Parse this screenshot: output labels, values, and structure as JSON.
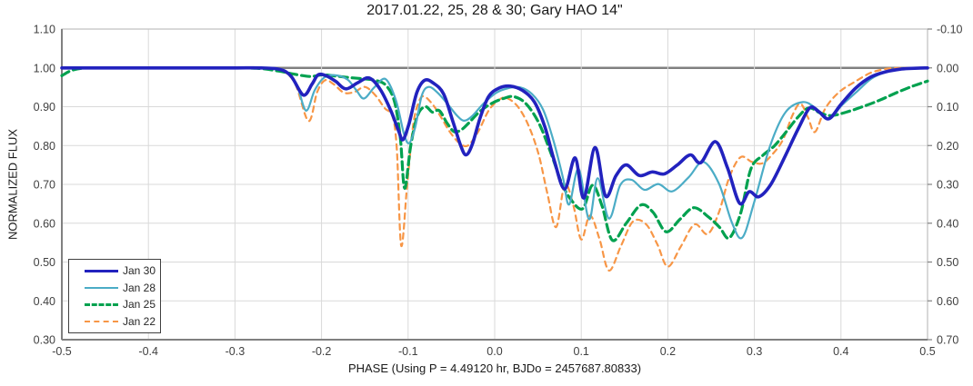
{
  "chart_data": {
    "type": "line",
    "title": "2017.01.22, 25, 28 & 30; Gary HAO 14\"",
    "xlabel": "PHASE (Using P = 4.49120 hr, BJDo = 2457687.80833)",
    "ylabel": "NORMALIZED FLUX",
    "xlim": [
      -0.5,
      0.5
    ],
    "ylim_left": [
      0.3,
      1.1
    ],
    "ylim_right": [
      0.7,
      -0.1
    ],
    "x_ticks": [
      "-0.5",
      "-0.4",
      "-0.3",
      "-0.2",
      "-0.1",
      "0.0",
      "0.1",
      "0.2",
      "0.3",
      "0.4",
      "0.5"
    ],
    "y_ticks_left": [
      "1.10",
      "1.00",
      "0.90",
      "0.80",
      "0.70",
      "0.60",
      "0.50",
      "0.40",
      "0.30"
    ],
    "y_ticks_right": [
      "-0.10",
      "0.00",
      "0.10",
      "0.20",
      "0.30",
      "0.40",
      "0.50",
      "0.60",
      "0.70"
    ],
    "grid": true,
    "legend_position": "inside-bottom-left",
    "reference_line_flux": 1.0,
    "colors": {
      "grid": "#D9D9D9",
      "border": "#BFBFBF",
      "axis": "#808080",
      "tick_text": "#404040",
      "title_text": "#1a1a1a"
    },
    "series": [
      {
        "name": "Jan 30",
        "color": "#2222BE",
        "style": "solid",
        "width": 3.6,
        "points": [
          [
            -0.5,
            1.0
          ],
          [
            -0.45,
            1.0
          ],
          [
            -0.4,
            1.0
          ],
          [
            -0.35,
            1.0
          ],
          [
            -0.3,
            1.0
          ],
          [
            -0.27,
            1.0
          ],
          [
            -0.248,
            0.996
          ],
          [
            -0.235,
            0.978
          ],
          [
            -0.221,
            0.93
          ],
          [
            -0.211,
            0.958
          ],
          [
            -0.204,
            0.982
          ],
          [
            -0.195,
            0.98
          ],
          [
            -0.184,
            0.966
          ],
          [
            -0.172,
            0.946
          ],
          [
            -0.158,
            0.962
          ],
          [
            -0.145,
            0.974
          ],
          [
            -0.132,
            0.944
          ],
          [
            -0.12,
            0.89
          ],
          [
            -0.111,
            0.838
          ],
          [
            -0.106,
            0.815
          ],
          [
            -0.099,
            0.856
          ],
          [
            -0.09,
            0.936
          ],
          [
            -0.081,
            0.968
          ],
          [
            -0.071,
            0.961
          ],
          [
            -0.059,
            0.933
          ],
          [
            -0.048,
            0.86
          ],
          [
            -0.039,
            0.798
          ],
          [
            -0.033,
            0.776
          ],
          [
            -0.026,
            0.802
          ],
          [
            -0.017,
            0.87
          ],
          [
            -0.007,
            0.926
          ],
          [
            0.005,
            0.948
          ],
          [
            0.018,
            0.953
          ],
          [
            0.032,
            0.942
          ],
          [
            0.046,
            0.912
          ],
          [
            0.058,
            0.848
          ],
          [
            0.069,
            0.76
          ],
          [
            0.081,
            0.688
          ],
          [
            0.093,
            0.768
          ],
          [
            0.103,
            0.665
          ],
          [
            0.116,
            0.795
          ],
          [
            0.128,
            0.67
          ],
          [
            0.14,
            0.722
          ],
          [
            0.152,
            0.75
          ],
          [
            0.167,
            0.723
          ],
          [
            0.182,
            0.732
          ],
          [
            0.196,
            0.727
          ],
          [
            0.211,
            0.75
          ],
          [
            0.226,
            0.776
          ],
          [
            0.238,
            0.756
          ],
          [
            0.255,
            0.81
          ],
          [
            0.269,
            0.742
          ],
          [
            0.283,
            0.651
          ],
          [
            0.294,
            0.681
          ],
          [
            0.305,
            0.668
          ],
          [
            0.319,
            0.7
          ],
          [
            0.336,
            0.775
          ],
          [
            0.351,
            0.845
          ],
          [
            0.364,
            0.897
          ],
          [
            0.374,
            0.888
          ],
          [
            0.386,
            0.869
          ],
          [
            0.4,
            0.906
          ],
          [
            0.417,
            0.948
          ],
          [
            0.434,
            0.976
          ],
          [
            0.452,
            0.99
          ],
          [
            0.47,
            0.997
          ],
          [
            0.485,
            0.999
          ],
          [
            0.5,
            1.0
          ]
        ]
      },
      {
        "name": "Jan 28",
        "color": "#4BACC6",
        "style": "solid",
        "width": 2.2,
        "points": [
          [
            -0.5,
            1.0
          ],
          [
            -0.45,
            1.0
          ],
          [
            -0.4,
            1.0
          ],
          [
            -0.35,
            1.0
          ],
          [
            -0.3,
            1.0
          ],
          [
            -0.265,
            1.0
          ],
          [
            -0.243,
            0.992
          ],
          [
            -0.229,
            0.958
          ],
          [
            -0.218,
            0.89
          ],
          [
            -0.208,
            0.942
          ],
          [
            -0.197,
            0.975
          ],
          [
            -0.184,
            0.981
          ],
          [
            -0.17,
            0.97
          ],
          [
            -0.16,
            0.943
          ],
          [
            -0.151,
            0.921
          ],
          [
            -0.139,
            0.95
          ],
          [
            -0.126,
            0.971
          ],
          [
            -0.114,
            0.916
          ],
          [
            -0.105,
            0.832
          ],
          [
            -0.099,
            0.806
          ],
          [
            -0.092,
            0.845
          ],
          [
            -0.084,
            0.93
          ],
          [
            -0.076,
            0.951
          ],
          [
            -0.066,
            0.936
          ],
          [
            -0.054,
            0.906
          ],
          [
            -0.043,
            0.876
          ],
          [
            -0.035,
            0.864
          ],
          [
            -0.026,
            0.876
          ],
          [
            -0.013,
            0.908
          ],
          [
            0.002,
            0.936
          ],
          [
            0.016,
            0.948
          ],
          [
            0.029,
            0.95
          ],
          [
            0.043,
            0.933
          ],
          [
            0.056,
            0.892
          ],
          [
            0.068,
            0.812
          ],
          [
            0.079,
            0.716
          ],
          [
            0.086,
            0.648
          ],
          [
            0.097,
            0.74
          ],
          [
            0.109,
            0.61
          ],
          [
            0.119,
            0.716
          ],
          [
            0.132,
            0.612
          ],
          [
            0.145,
            0.698
          ],
          [
            0.158,
            0.712
          ],
          [
            0.173,
            0.686
          ],
          [
            0.189,
            0.701
          ],
          [
            0.205,
            0.682
          ],
          [
            0.224,
            0.718
          ],
          [
            0.241,
            0.758
          ],
          [
            0.259,
            0.702
          ],
          [
            0.274,
            0.602
          ],
          [
            0.286,
            0.563
          ],
          [
            0.3,
            0.656
          ],
          [
            0.318,
            0.798
          ],
          [
            0.336,
            0.886
          ],
          [
            0.356,
            0.912
          ],
          [
            0.371,
            0.896
          ],
          [
            0.386,
            0.868
          ],
          [
            0.401,
            0.904
          ],
          [
            0.417,
            0.936
          ],
          [
            0.435,
            0.972
          ],
          [
            0.453,
            0.99
          ],
          [
            0.473,
            0.999
          ],
          [
            0.5,
            1.0
          ]
        ]
      },
      {
        "name": "Jan 25",
        "color": "#00A14F",
        "style": "dashed",
        "width": 3.2,
        "points": [
          [
            -0.5,
            0.98
          ],
          [
            -0.488,
            0.994
          ],
          [
            -0.47,
            1.0
          ],
          [
            -0.42,
            1.0
          ],
          [
            -0.37,
            1.0
          ],
          [
            -0.32,
            1.0
          ],
          [
            -0.275,
            0.999
          ],
          [
            -0.25,
            0.992
          ],
          [
            -0.232,
            0.984
          ],
          [
            -0.213,
            0.978
          ],
          [
            -0.199,
            0.982
          ],
          [
            -0.184,
            0.979
          ],
          [
            -0.168,
            0.975
          ],
          [
            -0.152,
            0.972
          ],
          [
            -0.138,
            0.968
          ],
          [
            -0.126,
            0.956
          ],
          [
            -0.116,
            0.915
          ],
          [
            -0.109,
            0.82
          ],
          [
            -0.104,
            0.69
          ],
          [
            -0.097,
            0.8
          ],
          [
            -0.089,
            0.878
          ],
          [
            -0.08,
            0.9
          ],
          [
            -0.072,
            0.886
          ],
          [
            -0.064,
            0.89
          ],
          [
            -0.055,
            0.858
          ],
          [
            -0.047,
            0.836
          ],
          [
            -0.039,
            0.84
          ],
          [
            -0.03,
            0.858
          ],
          [
            -0.018,
            0.886
          ],
          [
            -0.004,
            0.908
          ],
          [
            0.01,
            0.921
          ],
          [
            0.022,
            0.926
          ],
          [
            0.036,
            0.908
          ],
          [
            0.051,
            0.858
          ],
          [
            0.065,
            0.78
          ],
          [
            0.078,
            0.7
          ],
          [
            0.09,
            0.655
          ],
          [
            0.102,
            0.638
          ],
          [
            0.113,
            0.698
          ],
          [
            0.124,
            0.645
          ],
          [
            0.136,
            0.556
          ],
          [
            0.152,
            0.6
          ],
          [
            0.169,
            0.647
          ],
          [
            0.183,
            0.628
          ],
          [
            0.198,
            0.578
          ],
          [
            0.214,
            0.61
          ],
          [
            0.23,
            0.64
          ],
          [
            0.247,
            0.616
          ],
          [
            0.26,
            0.589
          ],
          [
            0.271,
            0.562
          ],
          [
            0.284,
            0.625
          ],
          [
            0.296,
            0.74
          ],
          [
            0.31,
            0.775
          ],
          [
            0.323,
            0.799
          ],
          [
            0.337,
            0.836
          ],
          [
            0.351,
            0.875
          ],
          [
            0.363,
            0.897
          ],
          [
            0.376,
            0.884
          ],
          [
            0.389,
            0.877
          ],
          [
            0.406,
            0.886
          ],
          [
            0.425,
            0.9
          ],
          [
            0.445,
            0.917
          ],
          [
            0.464,
            0.936
          ],
          [
            0.483,
            0.953
          ],
          [
            0.5,
            0.966
          ]
        ]
      },
      {
        "name": "Jan 22",
        "color": "#F79646",
        "style": "dashed",
        "width": 2.2,
        "points": [
          [
            -0.5,
            1.0
          ],
          [
            -0.45,
            1.0
          ],
          [
            -0.4,
            1.0
          ],
          [
            -0.35,
            1.0
          ],
          [
            -0.3,
            1.0
          ],
          [
            -0.262,
            0.999
          ],
          [
            -0.244,
            0.991
          ],
          [
            -0.23,
            0.957
          ],
          [
            -0.215,
            0.863
          ],
          [
            -0.205,
            0.938
          ],
          [
            -0.196,
            0.968
          ],
          [
            -0.186,
            0.958
          ],
          [
            -0.174,
            0.936
          ],
          [
            -0.162,
            0.938
          ],
          [
            -0.15,
            0.951
          ],
          [
            -0.138,
            0.93
          ],
          [
            -0.127,
            0.896
          ],
          [
            -0.118,
            0.875
          ],
          [
            -0.113,
            0.79
          ],
          [
            -0.108,
            0.542
          ],
          [
            -0.101,
            0.7
          ],
          [
            -0.094,
            0.855
          ],
          [
            -0.087,
            0.916
          ],
          [
            -0.081,
            0.926
          ],
          [
            -0.071,
            0.904
          ],
          [
            -0.062,
            0.873
          ],
          [
            -0.052,
            0.836
          ],
          [
            -0.041,
            0.807
          ],
          [
            -0.031,
            0.8
          ],
          [
            -0.019,
            0.836
          ],
          [
            -0.007,
            0.89
          ],
          [
            0.004,
            0.916
          ],
          [
            0.013,
            0.923
          ],
          [
            0.026,
            0.902
          ],
          [
            0.039,
            0.852
          ],
          [
            0.051,
            0.775
          ],
          [
            0.061,
            0.675
          ],
          [
            0.071,
            0.59
          ],
          [
            0.081,
            0.7
          ],
          [
            0.091,
            0.645
          ],
          [
            0.1,
            0.558
          ],
          [
            0.11,
            0.62
          ],
          [
            0.121,
            0.56
          ],
          [
            0.132,
            0.478
          ],
          [
            0.146,
            0.542
          ],
          [
            0.16,
            0.605
          ],
          [
            0.175,
            0.597
          ],
          [
            0.188,
            0.545
          ],
          [
            0.2,
            0.488
          ],
          [
            0.215,
            0.54
          ],
          [
            0.231,
            0.597
          ],
          [
            0.246,
            0.572
          ],
          [
            0.259,
            0.628
          ],
          [
            0.271,
            0.718
          ],
          [
            0.284,
            0.77
          ],
          [
            0.297,
            0.758
          ],
          [
            0.309,
            0.754
          ],
          [
            0.321,
            0.778
          ],
          [
            0.333,
            0.815
          ],
          [
            0.344,
            0.878
          ],
          [
            0.353,
            0.908
          ],
          [
            0.362,
            0.872
          ],
          [
            0.37,
            0.835
          ],
          [
            0.382,
            0.896
          ],
          [
            0.398,
            0.938
          ],
          [
            0.416,
            0.964
          ],
          [
            0.434,
            0.987
          ],
          [
            0.451,
            0.997
          ],
          [
            0.468,
            1.0
          ],
          [
            0.5,
            1.0
          ]
        ]
      }
    ]
  }
}
